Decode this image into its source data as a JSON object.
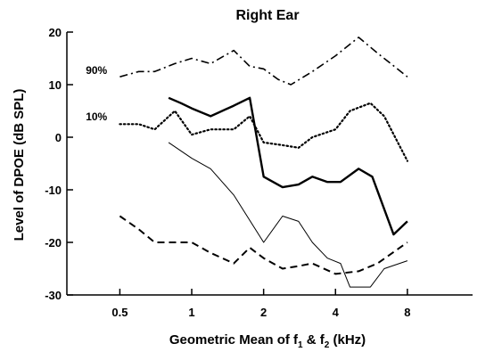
{
  "chart_data": {
    "type": "line",
    "title": "Right Ear",
    "xlabel_main": "Geometric Mean of f",
    "xlabel_sub1": "1",
    "xlabel_mid": " & f",
    "xlabel_sub2": "2",
    "xlabel_end": " (kHz)",
    "ylabel": "Level of DPOE (dB SPL)",
    "x_scale": "log",
    "xlim": [
      0.3,
      15
    ],
    "ylim": [
      -30,
      20
    ],
    "xticks": [
      0.5,
      1,
      2,
      4,
      8
    ],
    "xtick_labels": [
      "0.5",
      "1",
      "2",
      "4",
      "8"
    ],
    "yticks": [
      -30,
      -20,
      -10,
      0,
      10,
      20
    ],
    "ytick_labels": [
      "-30",
      "-20",
      "-10",
      "0",
      "10",
      "20"
    ],
    "annotations": [
      {
        "text": "90%",
        "x": 0.36,
        "y": 12
      },
      {
        "text": "10%",
        "x": 0.36,
        "y": 3.2
      }
    ],
    "series": [
      {
        "style": "dashdot",
        "x": [
          0.5,
          0.6,
          0.7,
          0.85,
          1.0,
          1.2,
          1.5,
          1.75,
          2.0,
          2.3,
          2.6,
          3.2,
          4.0,
          5.0,
          6.0,
          8.0
        ],
        "y": [
          11.5,
          12.5,
          12.5,
          14.0,
          15.0,
          14.0,
          16.5,
          13.5,
          13.0,
          11.0,
          10.0,
          12.5,
          15.5,
          19.0,
          16.0,
          11.5
        ]
      },
      {
        "style": "dotted",
        "x": [
          0.5,
          0.6,
          0.7,
          0.85,
          1.0,
          1.2,
          1.5,
          1.75,
          2.0,
          2.4,
          2.8,
          3.2,
          4.0,
          4.6,
          5.6,
          6.4,
          8.0
        ],
        "y": [
          2.5,
          2.5,
          1.5,
          5.0,
          0.5,
          1.5,
          1.5,
          4.0,
          -1.0,
          -1.5,
          -2.0,
          0.0,
          1.5,
          5.0,
          6.5,
          4.0,
          -4.5
        ]
      },
      {
        "style": "thick",
        "x": [
          0.8,
          0.9,
          1.0,
          1.2,
          1.5,
          1.75,
          2.0,
          2.4,
          2.8,
          3.2,
          3.7,
          4.2,
          5.0,
          5.7,
          7.0,
          8.0
        ],
        "y": [
          7.5,
          6.5,
          5.5,
          4.0,
          6.0,
          7.5,
          -7.5,
          -9.5,
          -9.0,
          -7.5,
          -8.5,
          -8.5,
          -6.0,
          -7.5,
          -18.5,
          -16.0
        ]
      },
      {
        "style": "thin",
        "x": [
          0.8,
          1.0,
          1.2,
          1.5,
          2.0,
          2.4,
          2.8,
          3.2,
          3.7,
          4.2,
          4.6,
          5.6,
          6.4,
          8.0
        ],
        "y": [
          -1.0,
          -4.0,
          -6.0,
          -11.0,
          -20.0,
          -15.0,
          -16.0,
          -20.0,
          -23.0,
          -24.0,
          -28.5,
          -28.5,
          -25.0,
          -23.5
        ]
      },
      {
        "style": "dashed",
        "x": [
          0.5,
          0.6,
          0.7,
          0.85,
          1.0,
          1.2,
          1.5,
          1.75,
          2.0,
          2.4,
          2.8,
          3.2,
          4.0,
          5.0,
          6.0,
          8.0
        ],
        "y": [
          -15.0,
          -17.5,
          -20.0,
          -20.0,
          -20.0,
          -22.0,
          -24.0,
          -21.0,
          -23.0,
          -25.0,
          -24.5,
          -24.0,
          -26.0,
          -25.5,
          -24.0,
          -20.0
        ]
      }
    ]
  }
}
